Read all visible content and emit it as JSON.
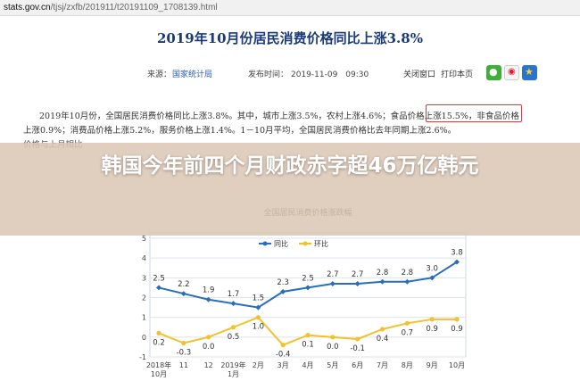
{
  "browser": {
    "url_host": "stats.gov.cn",
    "url_path": "/tjsj/zxfb/201911/t20191109_1708139.html"
  },
  "article": {
    "title": "2019年10月份居民消费价格同比上涨3.8%",
    "source_label": "来源：",
    "source": "国家统计局",
    "time_label": "发布时间：",
    "time": "2019-11-09　09:30",
    "close_window": "关闭窗口",
    "print": "打印本页",
    "para_1_a": "2019年10月份，全国居民消费价格同比上涨3.8%。其中，城市上涨3.5%，农村上涨4.6%；",
    "para_1_highlight": "食品价格上涨15.5%，",
    "para_1_b": "非食品价格",
    "para_2": "上涨0.9%；消费品价格上涨5.2%，服务价格上涨1.4%。1－10月平均，全国居民消费价格比去年同期上涨2.6%。",
    "para_3": "价格与上月相比"
  },
  "overlay": {
    "headline": "韩国今年前四个月财政赤字超46万亿韩元"
  },
  "icons": {
    "share": [
      "wechat-icon",
      "weibo-icon",
      "favorite-star-icon"
    ]
  },
  "colors": {
    "title": "#1a3a78",
    "link": "#2a5db0",
    "highlight_border": "#d93a3a",
    "series_yoy": "#2a6ebb",
    "series_mom": "#f2c12e"
  },
  "chart_data": {
    "type": "line",
    "title": "全国居民消费价格涨跌幅",
    "categories": [
      "2018年\n10月",
      "11",
      "12",
      "2019年\n1月",
      "2月",
      "3月",
      "4月",
      "5月",
      "6月",
      "7月",
      "8月",
      "9月",
      "10月"
    ],
    "series": [
      {
        "name": "同比",
        "color": "#2a6ebb",
        "values": [
          2.5,
          2.2,
          1.9,
          1.7,
          1.5,
          2.3,
          2.5,
          2.7,
          2.7,
          2.8,
          2.8,
          3.0,
          3.8
        ]
      },
      {
        "name": "环比",
        "color": "#f2c12e",
        "values": [
          0.2,
          -0.3,
          0.0,
          0.5,
          1.0,
          -0.4,
          0.1,
          0.0,
          -0.1,
          0.4,
          0.7,
          0.9,
          0.9
        ]
      }
    ],
    "ylim": [
      -1,
      5
    ],
    "yticks": [
      -1,
      0,
      1,
      2,
      3,
      4,
      5
    ],
    "grid": true,
    "legend_position": "top-center"
  }
}
